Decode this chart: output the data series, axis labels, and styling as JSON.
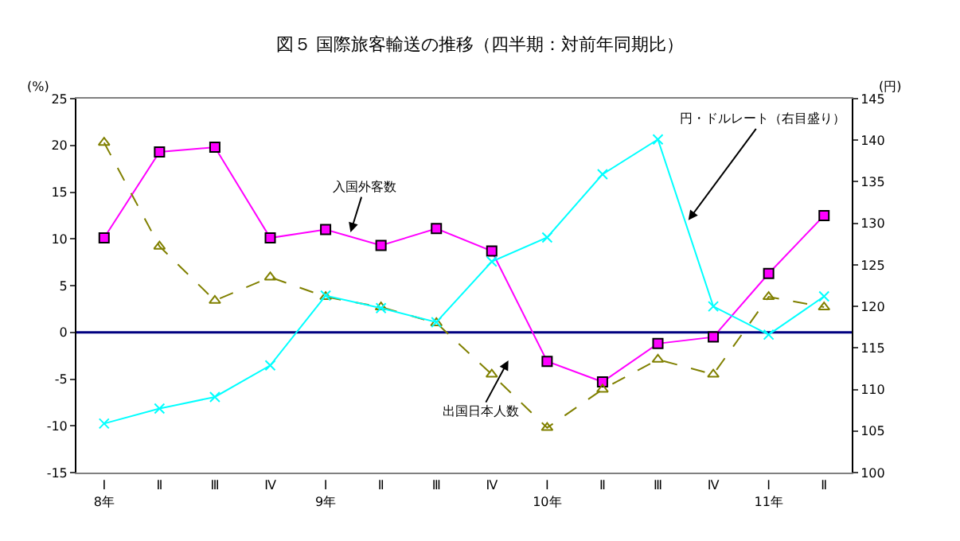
{
  "chart_data": {
    "type": "line",
    "title": "図５ 国際旅客輸送の推移（四半期：対前年同期比）",
    "ylabel": "(%)",
    "y2label": "(円)",
    "categories": [
      "Ⅰ\n8年",
      "Ⅱ",
      "Ⅲ",
      "Ⅳ",
      "Ⅰ\n9年",
      "Ⅱ",
      "Ⅲ",
      "Ⅳ",
      "Ⅰ\n10年",
      "Ⅱ",
      "Ⅲ",
      "Ⅳ",
      "Ⅰ\n11年",
      "Ⅱ"
    ],
    "series": [
      {
        "name": "入国外客数",
        "color": "#ff00ff",
        "marker": "square",
        "line_style": "solid",
        "values": [
          10.1,
          19.3,
          19.8,
          10.1,
          11.0,
          9.3,
          11.1,
          8.7,
          -3.1,
          -5.3,
          -1.2,
          -0.5,
          6.3,
          12.5
        ]
      },
      {
        "name": "出国日本人数",
        "color": "#808000",
        "marker": "triangle",
        "line_style": "dashed",
        "values": [
          20.3,
          9.2,
          3.4,
          5.9,
          3.8,
          2.7,
          1.0,
          -4.5,
          -10.2,
          -6.1,
          -2.9,
          -4.5,
          3.8,
          2.7
        ]
      },
      {
        "name": "円・ドルレート（右目盛り）",
        "color": "#00ffff",
        "marker": "cross",
        "line_style": "solid",
        "axis": "y2",
        "values": [
          105.9,
          107.7,
          109.1,
          112.9,
          121.3,
          119.8,
          118.1,
          125.4,
          128.3,
          135.9,
          140.1,
          120.0,
          116.6,
          121.2
        ]
      }
    ],
    "ylim": [
      -15,
      25
    ],
    "yticks": [
      -15,
      -10,
      -5,
      0,
      5,
      10,
      15,
      20,
      25
    ],
    "y2lim": [
      100,
      145
    ],
    "y2ticks": [
      100,
      105,
      110,
      115,
      120,
      125,
      130,
      135,
      140,
      145
    ],
    "ref_lines": [
      {
        "axis": "y",
        "value": 0,
        "color": "#000080"
      }
    ],
    "grid": false,
    "legend": false
  }
}
